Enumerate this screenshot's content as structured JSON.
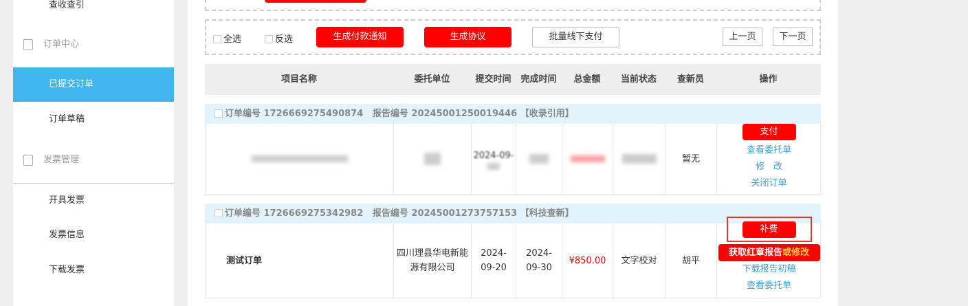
{
  "sidebar": {
    "items": [
      {
        "label": "查收查引",
        "type": "item"
      },
      {
        "label": "订单中心",
        "type": "group",
        "icon": "clipboard-icon"
      },
      {
        "label": "已提交订单",
        "type": "item",
        "active": true
      },
      {
        "label": "订单草稿",
        "type": "item"
      },
      {
        "label": "发票管理",
        "type": "group",
        "icon": "clipboard-icon"
      },
      {
        "label": "开具发票",
        "type": "item"
      },
      {
        "label": "发票信息",
        "type": "item"
      },
      {
        "label": "下载发票",
        "type": "item"
      }
    ],
    "active_color": "#41b5ee"
  },
  "toolbar": {
    "select_all": "全选",
    "invert": "反选",
    "payment_notice": "生成付款通知",
    "agreement": "生成协议",
    "offline_pay": "批量线下支付",
    "prev": "上一页",
    "next": "下一页"
  },
  "table": {
    "headers": [
      "项目名称",
      "委托单位",
      "提交时间",
      "完成时间",
      "总金额",
      "当前状态",
      "查新员",
      "操作"
    ]
  },
  "orders": [
    {
      "order_label": "订单编号",
      "order_no": "1726669275490874",
      "report_label": "报告编号",
      "report_no": "20245001250019446",
      "type": "【收录引用】",
      "name": "",
      "unit": "",
      "submit": "2024-09-",
      "complete": "",
      "amount": "",
      "status": "",
      "reviewer": "暂无",
      "actions": {
        "primary": "支付",
        "links": [
          "查看委托单",
          "修　改",
          "关闭订单"
        ]
      }
    },
    {
      "order_label": "订单编号",
      "order_no": "1726669275342982",
      "report_label": "报告编号",
      "report_no": "20245001273757153",
      "type": "【科技查新】",
      "name": "测试订单",
      "unit": "四川理县华电新能源有限公司",
      "submit": "2024-09-20",
      "complete": "2024-09-30",
      "amount": "¥850.00",
      "status": "文字校对",
      "reviewer": "胡平",
      "actions": {
        "primary": "补费",
        "red_report": "获取红章报告",
        "red_report_alt": "或修改",
        "links": [
          "下载报告初稿",
          "查看委托单"
        ]
      }
    }
  ],
  "colors": {
    "accent_red": "#ff0000",
    "link": "#3aa0d8",
    "highlight_box": "#e0392b"
  }
}
